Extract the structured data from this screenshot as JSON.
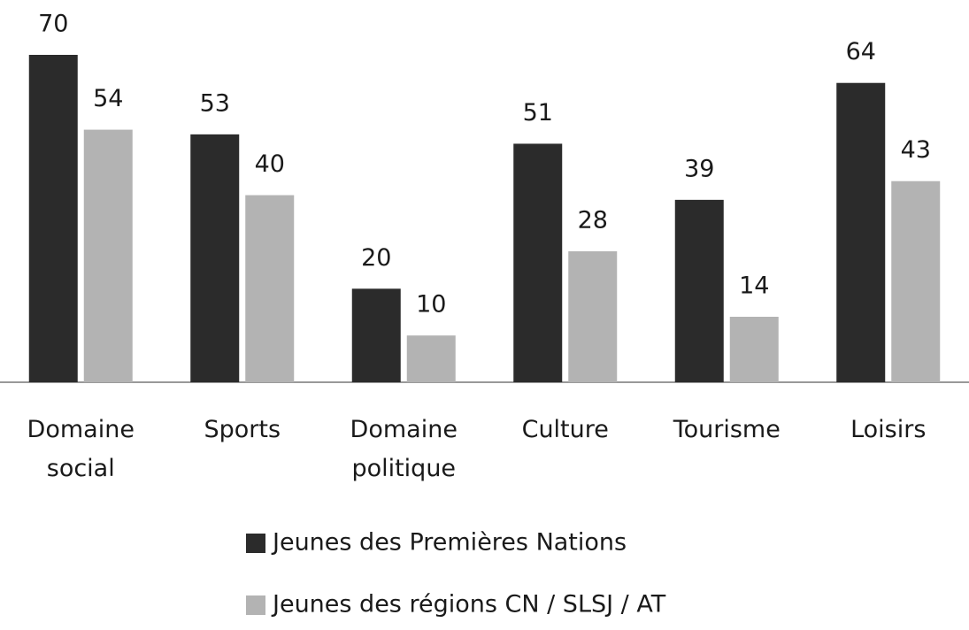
{
  "chart_data": {
    "type": "bar",
    "categories": [
      "Domaine social",
      "Sports",
      "Domaine politique",
      "Culture",
      "Tourisme",
      "Loisirs"
    ],
    "series": [
      {
        "name": "Jeunes des Premières Nations",
        "color": "#2b2b2b",
        "values": [
          70,
          53,
          20,
          51,
          39,
          64
        ]
      },
      {
        "name": "Jeunes des régions CN / SLSJ / AT",
        "color": "#b3b3b3",
        "values": [
          54,
          40,
          10,
          28,
          14,
          43
        ]
      }
    ]
  }
}
